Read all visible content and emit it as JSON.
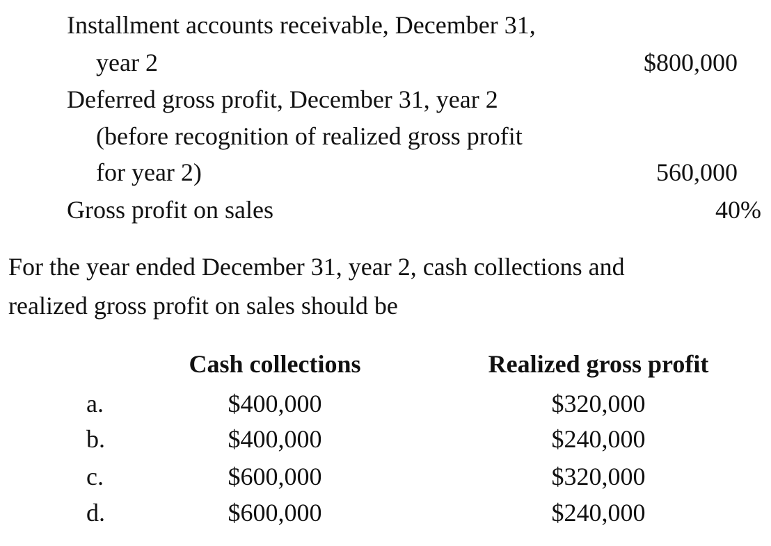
{
  "data_table": {
    "rows": [
      {
        "label_lines": [
          "Installment accounts receivable, December 31,",
          "year 2"
        ],
        "value": "$800,000"
      },
      {
        "label_lines": [
          "Deferred gross profit, December 31, year 2",
          "(before recognition of realized gross profit",
          "for year 2)"
        ],
        "value": "560,000"
      },
      {
        "label_lines": [
          "Gross profit on sales"
        ],
        "value": "40%"
      }
    ]
  },
  "question": {
    "lines": [
      "For the year ended December 31, year 2, cash collections and",
      "realized gross profit on sales should be"
    ]
  },
  "answers": {
    "headers": {
      "cash": "Cash collections",
      "profit": "Realized gross profit"
    },
    "options": [
      {
        "letter": "a.",
        "cash": "$400,000",
        "profit": "$320,000"
      },
      {
        "letter": "b.",
        "cash": "$400,000",
        "profit": "$240,000"
      },
      {
        "letter": "c.",
        "cash": "$600,000",
        "profit": "$320,000"
      },
      {
        "letter": "d.",
        "cash": "$600,000",
        "profit": "$240,000"
      }
    ]
  }
}
